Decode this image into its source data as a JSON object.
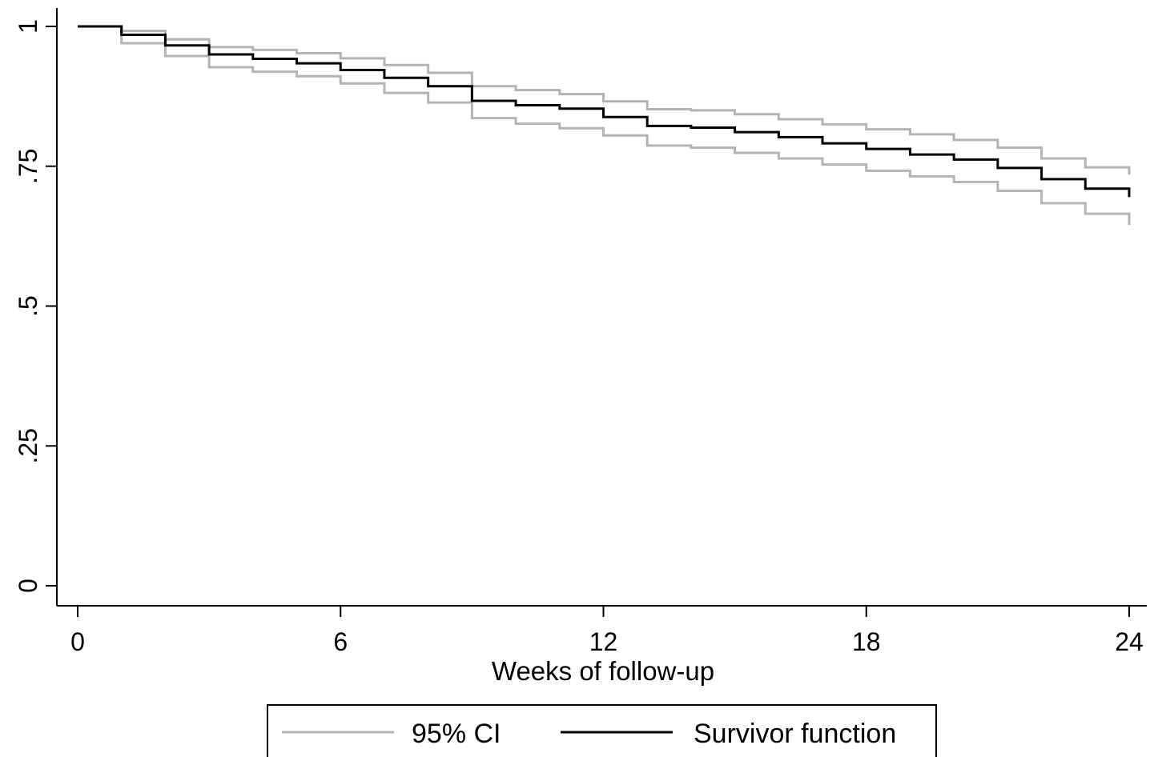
{
  "chart_data": {
    "type": "line",
    "step": true,
    "title": "",
    "xlabel": "Weeks of follow-up",
    "ylabel": "",
    "xlim": [
      0,
      24
    ],
    "ylim": [
      0,
      1
    ],
    "xticks": [
      0,
      6,
      12,
      18,
      24
    ],
    "yticks": [
      0,
      0.25,
      0.5,
      0.75,
      1
    ],
    "xtick_labels": [
      "0",
      "6",
      "12",
      "18",
      "24"
    ],
    "ytick_labels": [
      "0",
      ".25",
      ".5",
      ".75",
      "1"
    ],
    "grid": false,
    "legend_position": "bottom",
    "colors": {
      "survivor": "#000000",
      "ci": "#b4b4b4"
    },
    "legend": [
      {
        "key": "ci",
        "label": "95% CI"
      },
      {
        "key": "survivor",
        "label": "Survivor function"
      }
    ],
    "series": [
      {
        "name": "Survivor function",
        "key": "survivor",
        "x": [
          0,
          1,
          2,
          3,
          4,
          5,
          6,
          7,
          8,
          9,
          10,
          11,
          12,
          13,
          14,
          15,
          16,
          17,
          18,
          19,
          20,
          21,
          22,
          23,
          24
        ],
        "y": [
          1.0,
          0.985,
          0.966,
          0.95,
          0.942,
          0.934,
          0.922,
          0.908,
          0.893,
          0.867,
          0.859,
          0.853,
          0.838,
          0.822,
          0.819,
          0.811,
          0.802,
          0.791,
          0.781,
          0.771,
          0.762,
          0.747,
          0.727,
          0.71,
          0.695
        ]
      },
      {
        "name": "95% CI",
        "key": "ci",
        "x": [
          0,
          1,
          2,
          3,
          4,
          5,
          6,
          7,
          8,
          9,
          10,
          11,
          12,
          13,
          14,
          15,
          16,
          17,
          18,
          19,
          20,
          21,
          22,
          23,
          24
        ],
        "y": [
          1.0,
          0.992,
          0.977,
          0.963,
          0.958,
          0.952,
          0.943,
          0.931,
          0.917,
          0.893,
          0.886,
          0.879,
          0.866,
          0.852,
          0.85,
          0.843,
          0.834,
          0.825,
          0.816,
          0.807,
          0.797,
          0.783,
          0.764,
          0.748,
          0.735
        ]
      },
      {
        "name": "95% CI",
        "key": "ci",
        "x": [
          0,
          1,
          2,
          3,
          4,
          5,
          6,
          7,
          8,
          9,
          10,
          11,
          12,
          13,
          14,
          15,
          16,
          17,
          18,
          19,
          20,
          21,
          22,
          23,
          24
        ],
        "y": [
          1.0,
          0.97,
          0.947,
          0.927,
          0.919,
          0.911,
          0.898,
          0.881,
          0.864,
          0.836,
          0.826,
          0.818,
          0.805,
          0.787,
          0.783,
          0.774,
          0.764,
          0.753,
          0.742,
          0.732,
          0.722,
          0.706,
          0.684,
          0.665,
          0.645
        ]
      }
    ]
  }
}
